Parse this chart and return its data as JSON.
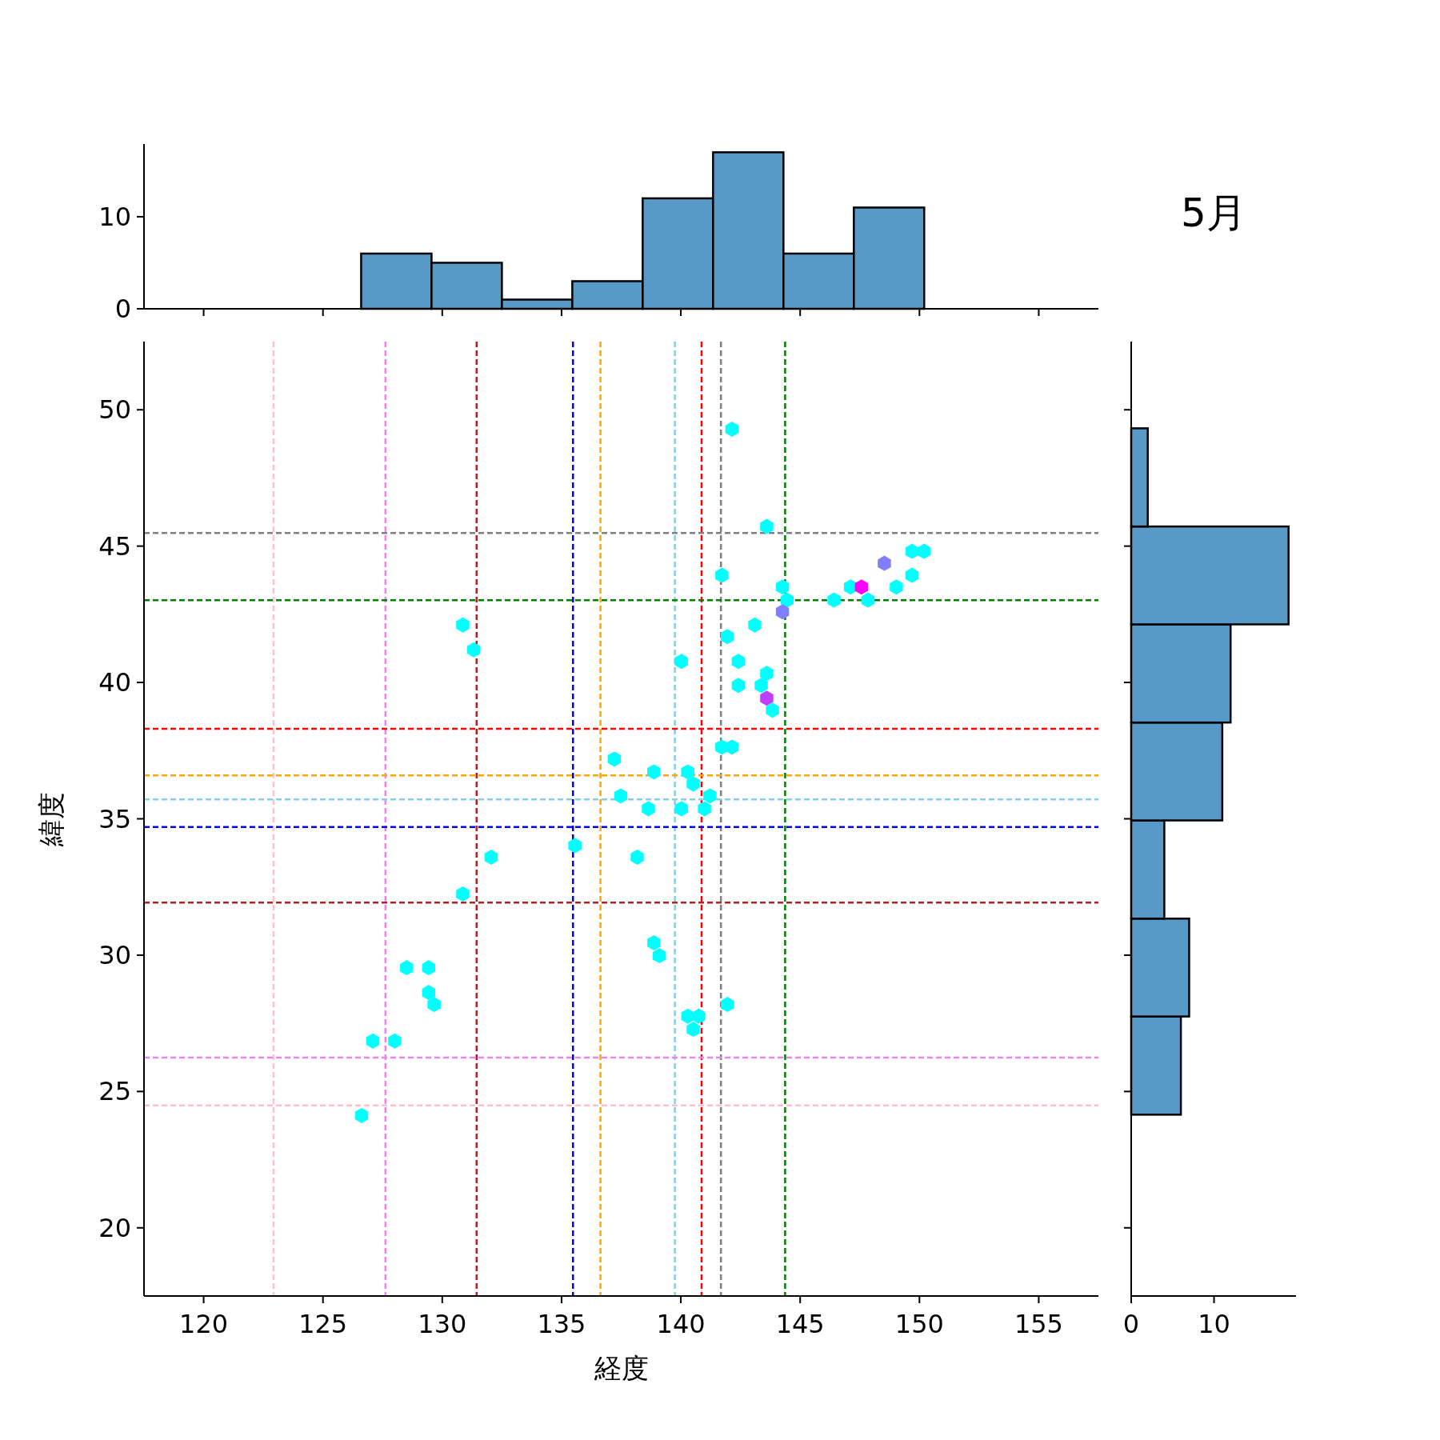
{
  "chart_data": [
    {
      "type": "histogram",
      "bins": [
        126.6,
        129.55,
        132.5,
        135.45,
        138.4,
        141.35,
        144.3,
        147.25,
        150.2
      ],
      "values": [
        6,
        5,
        1,
        3,
        12,
        17,
        6,
        11
      ],
      "color": "#5799c7",
      "xlim": [
        117.5,
        157.5
      ],
      "xticks": [
        120,
        125,
        130,
        135,
        140,
        145,
        150,
        155
      ],
      "ylim": [
        0,
        17.9
      ],
      "yticks": [
        0,
        10
      ],
      "tick_labels": "y"
    },
    {
      "type": "scatter",
      "xlabel": "経度",
      "ylabel": "緯度",
      "xlim": [
        117.5,
        157.5
      ],
      "ylim": [
        17.5,
        52.5
      ],
      "xticks": [
        120,
        125,
        130,
        135,
        140,
        145,
        150,
        155
      ],
      "yticks": [
        20,
        25,
        30,
        35,
        40,
        45,
        50
      ],
      "x": [
        142.14,
        143.6,
        141.72,
        144.26,
        144.45,
        146.42,
        147.11,
        147.57,
        147.84,
        148.53,
        149.03,
        149.69,
        150.19,
        149.69,
        144.26,
        141.95,
        143.1,
        142.41,
        140.02,
        142.41,
        143.6,
        143.37,
        143.6,
        143.84,
        130.86,
        131.32,
        141.72,
        142.14,
        137.21,
        138.87,
        140.29,
        140.52,
        137.48,
        138.64,
        140.02,
        140.99,
        141.22,
        135.56,
        132.05,
        138.17,
        130.86,
        138.87,
        139.1,
        128.51,
        129.43,
        129.43,
        129.66,
        141.95,
        140.29,
        140.75,
        140.52,
        127.09,
        128.01,
        126.62
      ],
      "values": [
        49.29,
        45.72,
        43.93,
        43.5,
        43.02,
        43.02,
        43.5,
        43.5,
        43.02,
        44.37,
        43.5,
        44.81,
        44.81,
        43.93,
        42.59,
        41.68,
        42.11,
        40.77,
        40.77,
        39.89,
        40.33,
        39.89,
        39.42,
        38.98,
        42.11,
        41.2,
        37.63,
        37.63,
        37.19,
        36.72,
        36.72,
        36.28,
        35.84,
        35.37,
        35.37,
        35.37,
        35.84,
        34.02,
        33.59,
        33.59,
        32.24,
        30.45,
        29.98,
        29.54,
        29.54,
        28.63,
        28.19,
        28.19,
        27.76,
        27.76,
        27.28,
        26.85,
        26.85,
        24.12
      ],
      "colors": [
        "#00ffff",
        "#00ffff",
        "#00ffff",
        "#00ffff",
        "#00ffff",
        "#00ffff",
        "#00ffff",
        "#ff00ff",
        "#00ffff",
        "#7f7fff",
        "#00ffff",
        "#00ffff",
        "#00ffff",
        "#00ffff",
        "#7f7fff",
        "#00ffff",
        "#00ffff",
        "#00ffff",
        "#00ffff",
        "#00ffff",
        "#00ffff",
        "#00ffff",
        "#bf3fff",
        "#00ffff",
        "#00ffff",
        "#00ffff",
        "#00ffff",
        "#00ffff",
        "#00ffff",
        "#00ffff",
        "#00ffff",
        "#00ffff",
        "#00ffff",
        "#00ffff",
        "#00ffff",
        "#00ffff",
        "#00ffff",
        "#00ffff",
        "#00ffff",
        "#00ffff",
        "#00ffff",
        "#00ffff",
        "#00ffff",
        "#00ffff",
        "#00ffff",
        "#00ffff",
        "#00ffff",
        "#00ffff",
        "#00ffff",
        "#00ffff",
        "#00ffff",
        "#00ffff",
        "#00ffff",
        "#00ffff"
      ],
      "ref_lines": [
        {
          "axis": "x",
          "value": 122.93,
          "color": "#ffc0cb",
          "line_style": "dashed"
        },
        {
          "axis": "x",
          "value": 127.62,
          "color": "#ee82ee",
          "line_style": "dashed"
        },
        {
          "axis": "x",
          "value": 131.44,
          "color": "#b22222",
          "line_style": "dashed"
        },
        {
          "axis": "x",
          "value": 135.48,
          "color": "#0000ff",
          "line_style": "dashed"
        },
        {
          "axis": "x",
          "value": 136.63,
          "color": "#ffa500",
          "line_style": "dashed"
        },
        {
          "axis": "x",
          "value": 139.75,
          "color": "#87ceeb",
          "line_style": "dashed"
        },
        {
          "axis": "x",
          "value": 140.87,
          "color": "#ff0000",
          "line_style": "dashed"
        },
        {
          "axis": "x",
          "value": 141.68,
          "color": "#808080",
          "line_style": "dashed"
        },
        {
          "axis": "x",
          "value": 144.37,
          "color": "#008000",
          "line_style": "dashed"
        },
        {
          "axis": "y",
          "value": 45.48,
          "color": "#808080",
          "line_style": "dashed"
        },
        {
          "axis": "y",
          "value": 43.02,
          "color": "#008000",
          "line_style": "dashed"
        },
        {
          "axis": "y",
          "value": 38.3,
          "color": "#ff0000",
          "line_style": "dashed"
        },
        {
          "axis": "y",
          "value": 36.59,
          "color": "#ffa500",
          "line_style": "dashed"
        },
        {
          "axis": "y",
          "value": 35.71,
          "color": "#87ceeb",
          "line_style": "dashed"
        },
        {
          "axis": "y",
          "value": 34.7,
          "color": "#0000ff",
          "line_style": "dashed"
        },
        {
          "axis": "y",
          "value": 31.93,
          "color": "#b22222",
          "line_style": "dashed"
        },
        {
          "axis": "y",
          "value": 26.24,
          "color": "#ee82ee",
          "line_style": "dashed"
        },
        {
          "axis": "y",
          "value": 24.49,
          "color": "#ffc0cb",
          "line_style": "dashed"
        }
      ]
    },
    {
      "type": "histogram",
      "orientation": "horizontal",
      "bins": [
        24.15,
        27.75,
        31.34,
        34.94,
        38.53,
        42.13,
        45.72,
        49.32
      ],
      "values": [
        6,
        7,
        4,
        11,
        12,
        19,
        2
      ],
      "color": "#5799c7",
      "xlim": [
        0,
        19.9
      ],
      "xticks": [
        0,
        10
      ],
      "ylim": [
        17.5,
        52.5
      ],
      "yticks": [
        20,
        25,
        30,
        35,
        40,
        45,
        50
      ],
      "tick_labels": "x"
    },
    {
      "type": "other",
      "title": "5月"
    }
  ]
}
